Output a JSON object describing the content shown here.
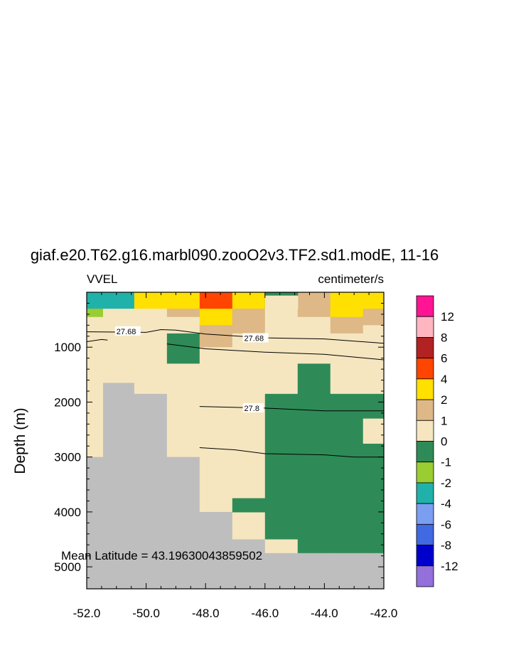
{
  "chart_data": {
    "type": "heatmap",
    "title": "giaf.e20.T62.g16.marbl090.zooO2v3.TF2.sd1.modE, 11-16",
    "left_label": "VVEL",
    "right_label": "centimeter/s",
    "ylabel": "Depth (m)",
    "xlabel": "",
    "xlim": [
      -52.0,
      -42.0
    ],
    "ylim": [
      5400,
      0
    ],
    "xticks": [
      "-52.0",
      "-50.0",
      "-48.0",
      "-46.0",
      "-44.0",
      "-42.0"
    ],
    "xtick_values": [
      -52,
      -50,
      -48,
      -46,
      -44,
      -42
    ],
    "yticks": [
      "1000",
      "2000",
      "3000",
      "4000",
      "5000"
    ],
    "ytick_values": [
      1000,
      2000,
      3000,
      4000,
      5000
    ],
    "annotation": "Mean Latitude = 43.19630043859502",
    "colorbar": {
      "labels": [
        "12",
        "8",
        "6",
        "4",
        "2",
        "1",
        "0",
        "-1",
        "-2",
        "-4",
        "-6",
        "-8",
        "-12"
      ],
      "colors_top_to_bottom": [
        "#ff1493",
        "#ffb6c1",
        "#b22222",
        "#ff4500",
        "#ffe000",
        "#deb887",
        "#f5e6c0",
        "#2e8b57",
        "#9acd32",
        "#20b2aa",
        "#7b9ff0",
        "#4169e1",
        "#0000cd",
        "#9370db"
      ]
    },
    "land_color": "#bebebe",
    "colors": {
      "c4": "#ff4500",
      "c2": "#ffe000",
      "c1": "#deb887",
      "c0": "#f5e6c0",
      "cm1": "#2e8b57",
      "cm2": "#9acd32",
      "cm4": "#20b2aa",
      "land": "#bebebe"
    },
    "columns_x": [
      [
        -52.0,
        -51.45
      ],
      [
        -51.45,
        -50.4
      ],
      [
        -50.4,
        -49.3
      ],
      [
        -49.3,
        -48.2
      ],
      [
        -48.2,
        -47.1
      ],
      [
        -47.1,
        -46.0
      ],
      [
        -46.0,
        -44.9
      ],
      [
        -44.9,
        -43.8
      ],
      [
        -43.8,
        -42.7
      ],
      [
        -42.7,
        -42.0
      ]
    ],
    "depth_levels": [
      0,
      300,
      450,
      600,
      750,
      1000,
      1300,
      1650,
      1850,
      3000,
      4000,
      4500,
      4750,
      5400
    ],
    "grid_rows": [
      [
        "cm4",
        "cm4",
        "c2",
        "c2",
        "c4",
        "c2",
        "cm1",
        "c1",
        "c2",
        "c2"
      ],
      [
        "cm2",
        "c0",
        "c0",
        "c1",
        "c2",
        "c1",
        "c0",
        "c1",
        "c2",
        "c1"
      ],
      [
        "c0",
        "c0",
        "c0",
        "c0",
        "c2",
        "c1",
        "c0",
        "c0",
        "c1",
        "c1"
      ],
      [
        "c0",
        "c0",
        "c0",
        "c0",
        "c1",
        "c1",
        "c0",
        "c0",
        "c1",
        "c0"
      ],
      [
        "c0",
        "c0",
        "c0",
        "cm1",
        "c1",
        "c0",
        "c0",
        "c0",
        "c0",
        "c0"
      ],
      [
        "c0",
        "c0",
        "c0",
        "cm1",
        "c0",
        "c0",
        "c0",
        "c0",
        "c0",
        "c0"
      ],
      [
        "c0",
        "c0",
        "c0",
        "c0",
        "c0",
        "c0",
        "c0",
        "cm1",
        "c0",
        "c0"
      ],
      [
        "c0",
        "land",
        "c0",
        "c0",
        "c0",
        "c0",
        "c0",
        "cm1",
        "c0",
        "c0"
      ],
      [
        "c0",
        "land",
        "land",
        "c0",
        "c0",
        "c0",
        "cm1",
        "cm1",
        "cm1",
        "cm1"
      ],
      [
        "land",
        "land",
        "land",
        "land",
        "c0",
        "c0",
        "cm1",
        "cm1",
        "cm1",
        "cm1"
      ],
      [
        "land",
        "land",
        "land",
        "land",
        "land",
        "c0",
        "cm1",
        "cm1",
        "cm1",
        "cm1"
      ],
      [
        "land",
        "land",
        "land",
        "land",
        "land",
        "land",
        "c0",
        "cm1",
        "cm1",
        "cm1"
      ],
      [
        "land",
        "land",
        "land",
        "land",
        "land",
        "land",
        "land",
        "land",
        "land",
        "land"
      ]
    ],
    "overrides": [
      {
        "x": [
          -47.1,
          -46.0
        ],
        "d": [
          3750,
          4000
        ],
        "c": "cm1"
      },
      {
        "x": [
          -46.0,
          -44.9
        ],
        "d": [
          0,
          60
        ],
        "c": "cm1"
      },
      {
        "x": [
          -46.0,
          -44.9
        ],
        "d": [
          60,
          300
        ],
        "c": "c0"
      },
      {
        "x": [
          -43.8,
          -42.7
        ],
        "d": [
          2300,
          3000
        ],
        "c": "cm1"
      },
      {
        "x": [
          -42.7,
          -42.0
        ],
        "d": [
          2300,
          2750
        ],
        "c": "c0"
      }
    ],
    "contours": [
      {
        "label": "27.68",
        "label_at": [
          -51.0,
          710
        ],
        "points": [
          [
            -52.0,
            720
          ],
          [
            -50.0,
            730
          ],
          [
            -49.5,
            680
          ],
          [
            -49.0,
            690
          ],
          [
            -48.0,
            760
          ],
          [
            -46.0,
            830
          ],
          [
            -44.0,
            850
          ],
          [
            -42.0,
            930
          ]
        ]
      },
      {
        "label": "27.68",
        "label_at": [
          -46.7,
          835
        ],
        "points": [
          [
            -52.0,
            900
          ],
          [
            -51.5,
            860
          ],
          [
            -51.3,
            870
          ]
        ]
      },
      {
        "label": "",
        "label_at": null,
        "points": [
          [
            -49.3,
            940
          ],
          [
            -48.0,
            1030
          ],
          [
            -46.0,
            1090
          ],
          [
            -44.0,
            1130
          ],
          [
            -42.0,
            1230
          ]
        ]
      },
      {
        "label": "27.8",
        "label_at": [
          -46.7,
          2110
        ],
        "points": [
          [
            -48.2,
            2080
          ],
          [
            -46.0,
            2110
          ],
          [
            -44.0,
            2160
          ],
          [
            -42.0,
            2160
          ]
        ]
      },
      {
        "label": "",
        "label_at": null,
        "points": [
          [
            -48.2,
            2830
          ],
          [
            -47.0,
            2870
          ],
          [
            -46.0,
            2940
          ],
          [
            -44.0,
            2960
          ],
          [
            -43.0,
            3000
          ],
          [
            -42.0,
            3000
          ]
        ]
      }
    ]
  }
}
